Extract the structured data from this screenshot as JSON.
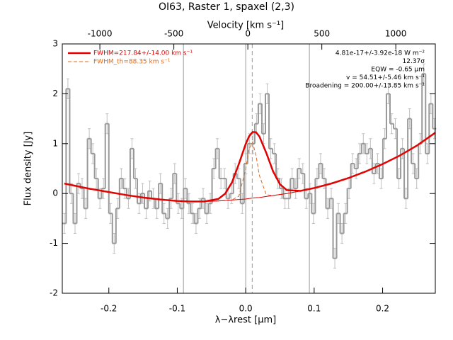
{
  "chart_data": {
    "type": "spectrum",
    "title": "OI63, Raster 1, spaxel (2,3)",
    "xlabel": "λ−λrest [μm]",
    "x2label": "Velocity [km s⁻¹]",
    "ylabel": "Flux density [Jy]",
    "xlim": [
      -0.268,
      0.277
    ],
    "xticks": [
      -0.2,
      -0.1,
      {
        "value": 0,
        "label": "0.0"
      },
      0.1,
      0.2
    ],
    "x2lim": [
      -1254,
      1267
    ],
    "x2ticks": [
      -1000,
      -500,
      0,
      500,
      1000
    ],
    "ylim": [
      -2,
      3
    ],
    "yticks": [
      -2,
      -1,
      0,
      1,
      2,
      3
    ],
    "vlines": [
      -0.091,
      0,
      0.093
    ],
    "vline_dashed": 0.0095,
    "annotations": [
      "4.81e-17+/-3.92e-18 W m⁻²",
      "12.37σ",
      "EQW = -0.65 μm",
      "v = 54.51+/-5.46 km s⁻¹",
      "Broadening = 200.00+/-13.85 km s⁻¹"
    ],
    "spectrum": {
      "color": "#999999",
      "error_color": "#c0c0c0",
      "error": 0.2,
      "bin_width": 0.0052,
      "x": [
        -0.265,
        -0.2598,
        -0.2546,
        -0.2494,
        -0.2442,
        -0.239,
        -0.2338,
        -0.2286,
        -0.2234,
        -0.2182,
        -0.213,
        -0.2078,
        -0.2026,
        -0.1974,
        -0.1922,
        -0.187,
        -0.1818,
        -0.1766,
        -0.1714,
        -0.1662,
        -0.161,
        -0.1558,
        -0.1506,
        -0.1454,
        -0.1402,
        -0.135,
        -0.1298,
        -0.1246,
        -0.1194,
        -0.1142,
        -0.109,
        -0.1038,
        -0.0986,
        -0.0934,
        -0.0882,
        -0.083,
        -0.0778,
        -0.0726,
        -0.0674,
        -0.0622,
        -0.057,
        -0.0518,
        -0.0466,
        -0.0414,
        -0.0362,
        -0.031,
        -0.0258,
        -0.0206,
        -0.0154,
        -0.0102,
        -0.005,
        0.0002,
        0.0054,
        0.0106,
        0.0158,
        0.021,
        0.0262,
        0.0314,
        0.0366,
        0.0418,
        0.047,
        0.0522,
        0.0574,
        0.0626,
        0.0678,
        0.073,
        0.0782,
        0.0834,
        0.0886,
        0.0938,
        0.099,
        0.1042,
        0.1094,
        0.1146,
        0.1198,
        0.125,
        0.1302,
        0.1354,
        0.1406,
        0.1458,
        0.151,
        0.1562,
        0.1614,
        0.1666,
        0.1718,
        0.177,
        0.1822,
        0.1874,
        0.1926,
        0.1978,
        0.203,
        0.2082,
        0.2134,
        0.2186,
        0.2238,
        0.229,
        0.2342,
        0.2394,
        0.2446,
        0.2498,
        0.255,
        0.2602,
        0.2654,
        0.2706,
        0.2758
      ],
      "values": [
        -0.6,
        2.1,
        0.0,
        -0.6,
        0.2,
        0.1,
        -0.3,
        1.1,
        0.8,
        0.3,
        -0.1,
        0.1,
        1.4,
        -0.4,
        -1.0,
        -0.3,
        0.3,
        0.1,
        -0.1,
        0.9,
        0.3,
        -0.2,
        0.0,
        -0.3,
        0.05,
        -0.1,
        -0.3,
        0.2,
        -0.4,
        -0.5,
        -0.1,
        0.4,
        -0.2,
        -0.3,
        0.1,
        -0.2,
        -0.4,
        -0.6,
        -0.3,
        -0.1,
        -0.4,
        -0.2,
        0.5,
        0.9,
        0.3,
        0.3,
        -0.1,
        0.0,
        0.4,
        0.3,
        -0.2,
        0.6,
        1.0,
        1.0,
        1.4,
        1.8,
        1.2,
        2.0,
        0.9,
        0.8,
        0.3,
        0.1,
        -0.1,
        -0.1,
        0.3,
        0.1,
        0.5,
        0.4,
        -0.1,
        0.0,
        -0.4,
        0.3,
        0.6,
        0.3,
        -0.3,
        -0.1,
        -1.3,
        -0.4,
        -0.8,
        -0.4,
        0.1,
        0.6,
        0.5,
        0.8,
        1.0,
        0.8,
        0.9,
        0.4,
        0.6,
        0.3,
        1.1,
        2.0,
        1.4,
        1.3,
        0.3,
        0.9,
        -0.1,
        1.5,
        0.6,
        0.3,
        1.0,
        2.4,
        0.8,
        1.8,
        1.3
      ]
    },
    "model_x": [
      -0.265,
      -0.23,
      -0.2,
      -0.175,
      -0.15,
      -0.125,
      -0.1,
      -0.08,
      -0.06,
      -0.04,
      -0.03,
      -0.02,
      -0.01,
      0,
      0.005,
      0.01,
      0.015,
      0.02,
      0.03,
      0.04,
      0.05,
      0.06,
      0.08,
      0.1,
      0.125,
      0.15,
      0.175,
      0.2,
      0.225,
      0.25,
      0.277
    ],
    "series": [
      {
        "name": "FWHM=217.84+/-14.00 km s⁻¹",
        "color": "#e00000",
        "width": 2.5,
        "dashed": false,
        "values": [
          0.2,
          0.1,
          0.03,
          -0.03,
          -0.08,
          -0.12,
          -0.15,
          -0.16,
          -0.158,
          -0.109,
          -0.003,
          0.225,
          0.593,
          0.994,
          1.149,
          1.233,
          1.229,
          1.145,
          0.816,
          0.444,
          0.187,
          0.068,
          0.053,
          0.11,
          0.2,
          0.31,
          0.44,
          0.59,
          0.76,
          0.96,
          1.22
        ]
      },
      {
        "name": "FWHM_th=88.35 km s⁻¹",
        "color": "#e06a1a",
        "width": 1,
        "dashed": true,
        "values": [
          0.2,
          0.1,
          0.03,
          -0.03,
          -0.08,
          -0.12,
          -0.15,
          -0.16,
          -0.16,
          -0.15,
          -0.14,
          -0.128,
          -0.053,
          0.49,
          0.897,
          1.031,
          0.768,
          0.359,
          -0.024,
          -0.04,
          -0.02,
          0.0,
          0.05,
          0.11,
          0.2,
          0.31,
          0.44,
          0.59,
          0.76,
          0.96,
          1.22
        ]
      },
      {
        "color": "#e00000",
        "width": 1,
        "dashed": false,
        "values": [
          0.2,
          0.1,
          0.03,
          -0.03,
          -0.08,
          -0.12,
          -0.15,
          -0.16,
          -0.16,
          -0.15,
          -0.14,
          -0.13,
          -0.12,
          -0.11,
          -0.1,
          -0.09,
          -0.085,
          -0.08,
          -0.06,
          -0.04,
          -0.02,
          0.0,
          0.05,
          0.11,
          0.2,
          0.31,
          0.44,
          0.59,
          0.76,
          0.96,
          1.22
        ]
      }
    ]
  }
}
